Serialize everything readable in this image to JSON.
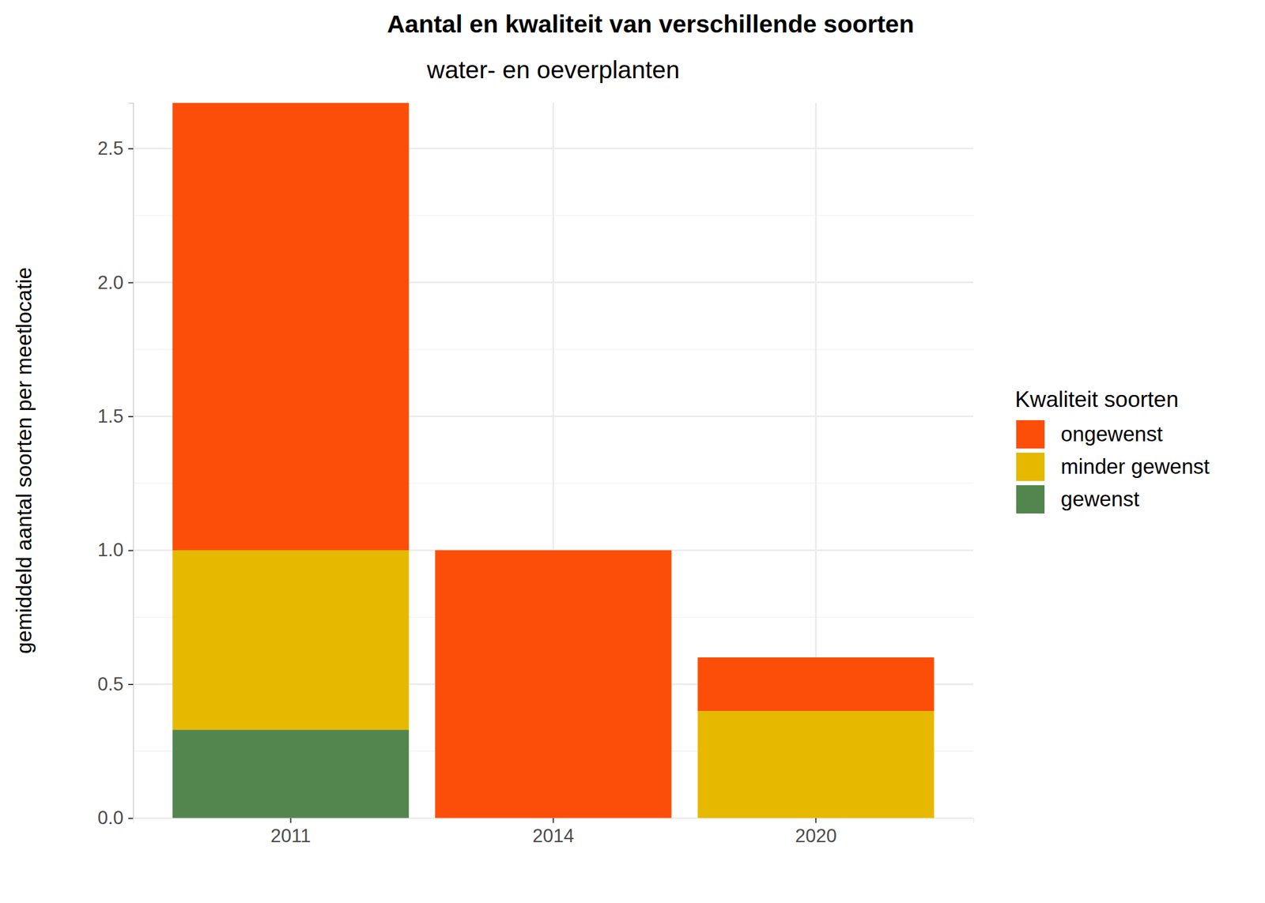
{
  "chart_data": {
    "type": "bar",
    "stacked": true,
    "grid": true,
    "legend": "right",
    "title": "Aantal en kwaliteit van verschillende soorten",
    "subtitle": "water- en oeverplanten",
    "y_label": "gemiddeld aantal soorten per meetlocatie",
    "legend_title": "Kwaliteit soorten",
    "categories": [
      "2011",
      "2014",
      "2020"
    ],
    "series": [
      {
        "name": "ongewenst",
        "color": "#FC4E08",
        "values": [
          1.67,
          1.0,
          0.2
        ]
      },
      {
        "name": "minder gewenst",
        "color": "#E6B900",
        "values": [
          0.67,
          0,
          0.4
        ]
      },
      {
        "name": "gewenst",
        "color": "#53864F",
        "values": [
          0.33,
          0,
          0
        ]
      }
    ],
    "ylim": [
      0,
      2.67
    ],
    "yticks": [
      {
        "value": 0,
        "label": "0.0"
      },
      0.5,
      {
        "value": 1,
        "label": "1.0"
      },
      1.5,
      {
        "value": 2,
        "label": "2.0"
      },
      2.5
    ]
  }
}
